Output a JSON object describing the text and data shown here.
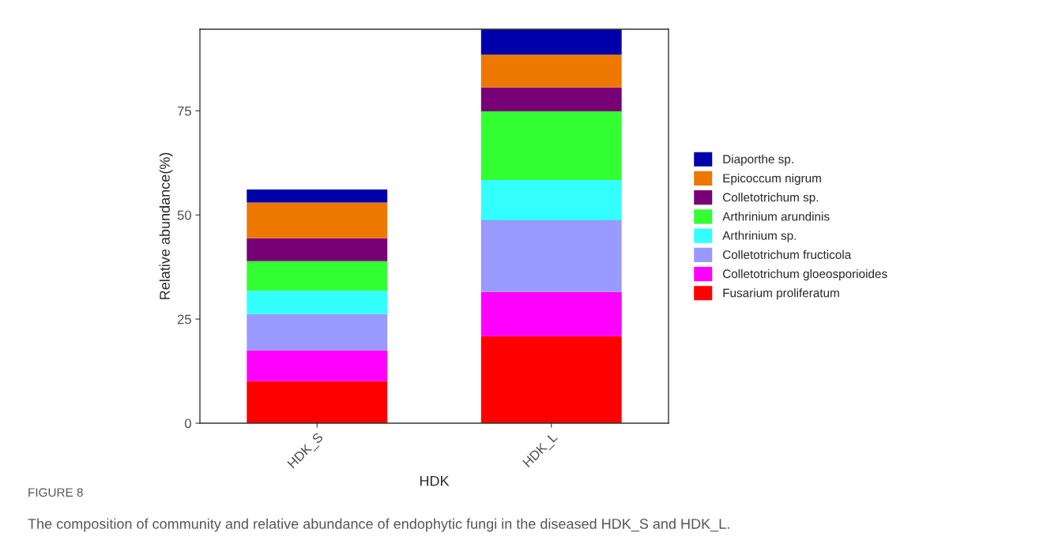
{
  "chart_data": {
    "type": "bar",
    "stacked": true,
    "xlabel": "HDK",
    "ylabel": "Relative abundance(%)",
    "categories": [
      "HDK_S",
      "HDK_L"
    ],
    "series": [
      {
        "name": "Fusarium proliferatum",
        "color": "#ff0000",
        "values": [
          10.1,
          20.9
        ]
      },
      {
        "name": "Colletotrichum gloeosporioides",
        "color": "#ff00ff",
        "values": [
          7.4,
          10.6
        ]
      },
      {
        "name": "Colletotrichum fructicola",
        "color": "#9999ff",
        "values": [
          8.7,
          17.2
        ]
      },
      {
        "name": "Arthrinium sp.",
        "color": "#33ffff",
        "values": [
          5.6,
          9.7
        ]
      },
      {
        "name": "Arthrinium arundinis",
        "color": "#33ff33",
        "values": [
          7.1,
          16.5
        ]
      },
      {
        "name": "Colletotrichum sp.",
        "color": "#770077",
        "values": [
          5.5,
          5.7
        ]
      },
      {
        "name": "Epicoccum nigrum",
        "color": "#ee7700",
        "values": [
          8.6,
          7.9
        ]
      },
      {
        "name": "Diaporthe sp.",
        "color": "#0000aa",
        "values": [
          3.1,
          6.1
        ]
      }
    ],
    "ylim": [
      0,
      94.6
    ],
    "yticks": [
      0,
      25,
      50,
      75
    ],
    "grid": false,
    "legend": "right",
    "annotations": [
      "FIGURE 8",
      "The composition of community and relative abundance of endophytic fungi in the diseased HDK_S and HDK_L."
    ]
  }
}
